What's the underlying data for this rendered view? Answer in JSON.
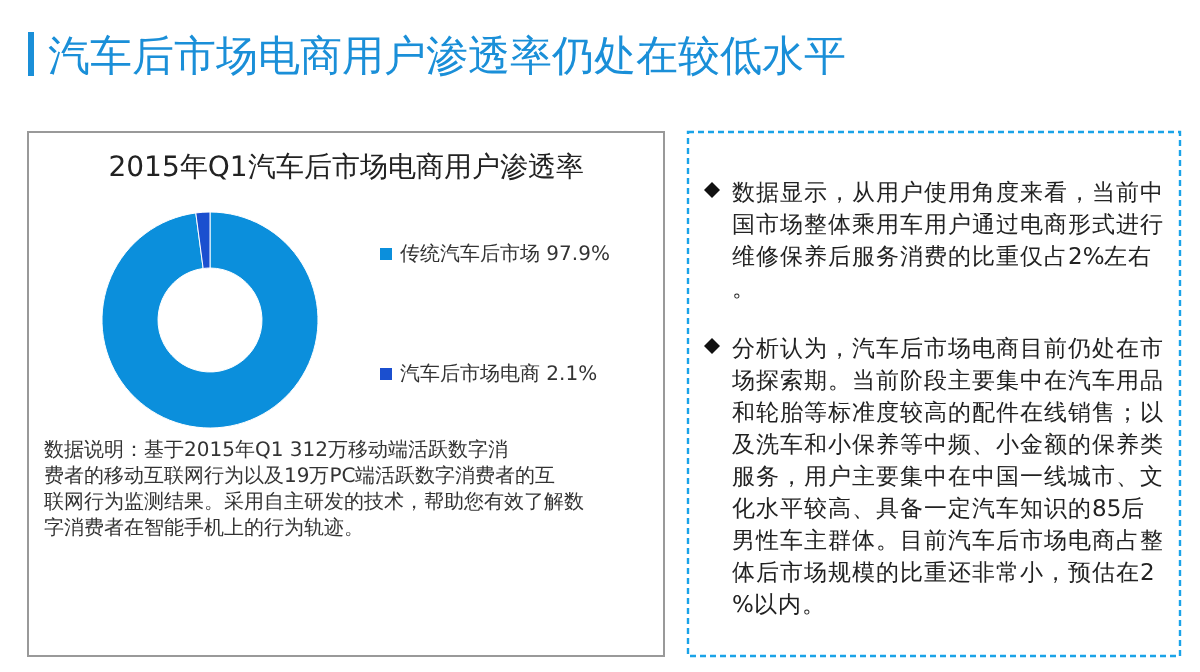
{
  "chart_data": {
    "type": "donut",
    "title": "汽车后市场电商用户渗透率仍处在较低水平",
    "subtitle": "2015年Q1汽车后市场电商用户渗透率",
    "categories": [
      "传统汽车后市场",
      "汽车后市场电商"
    ],
    "values": [
      97.9,
      2.1
    ],
    "colors": [
      "#0b8fdc",
      "#1b4fcf"
    ],
    "value_labels": [
      "97.9%",
      "2.1%"
    ],
    "legend": "right",
    "annotations": [
      "数据说明：基于2015年Q1 312万移动端活跃数字消费者的移动互联网行为以及19万PC端活跃数字消费者的互联网行为监测结果。采用自主研发的技术，帮助您有效了解数字消费者在智能手机上的行为轨迹。",
      "数据显示，从用户使用角度来看，当前中国市场整体乘用车用户通过电商形式进行维修保养后服务消费的比重仅占2%左右。",
      "分析认为，汽车后市场电商目前仍处在市场探索期。当前阶段主要集中在汽车用品和轮胎等标准度较高的配件在线销售；以及洗车和小保养等中频、小金额的保养类服务，用户主要集中在中国一线城市、文化水平较高、具备一定汽车知识的85后男性车主群体。目前汽车后市场电商占整体后市场规模的比重还非常小，预估在2%以内。"
    ]
  }
}
